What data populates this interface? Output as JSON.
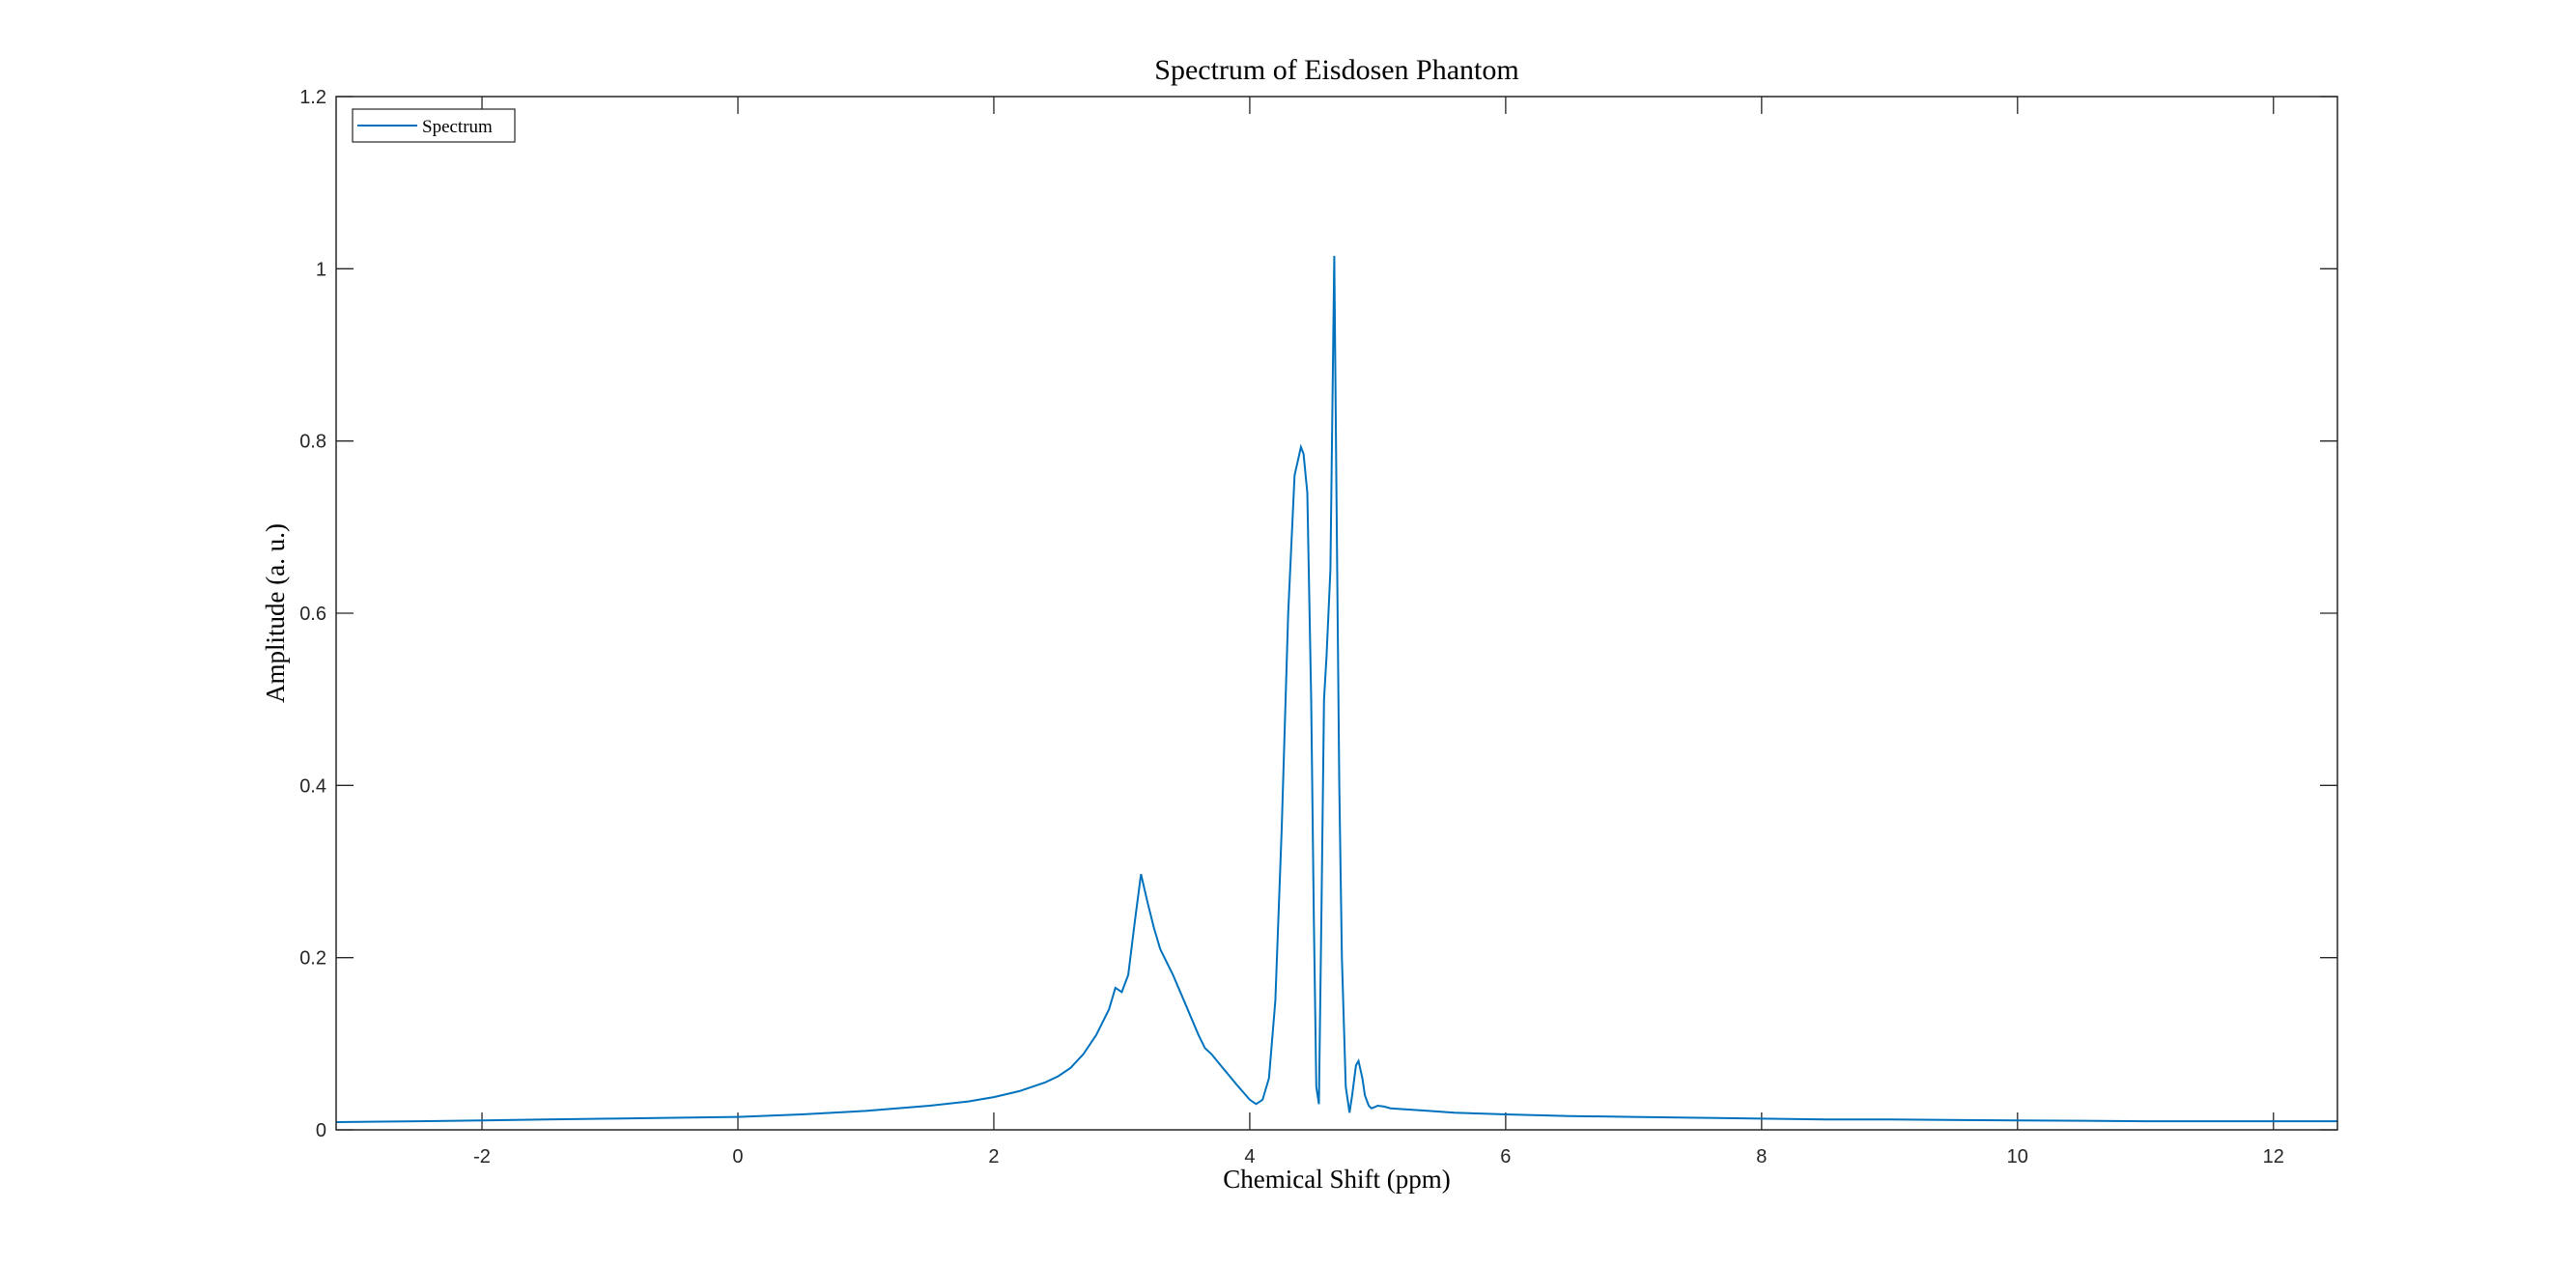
{
  "chart_data": {
    "type": "line",
    "title": "Spectrum of Eisdosen Phantom",
    "xlabel": "Chemical Shift (ppm)",
    "ylabel": "Amplitude (a. u.)",
    "xlim": [
      -3.14,
      12.5
    ],
    "ylim": [
      0,
      1.2
    ],
    "xticks": [
      -2,
      0,
      2,
      4,
      6,
      8,
      10,
      12
    ],
    "xtick_labels": [
      "-2",
      "0",
      "2",
      "4",
      "6",
      "8",
      "10",
      "12"
    ],
    "yticks": [
      0,
      0.2,
      0.4,
      0.6,
      0.8,
      1.0,
      1.2
    ],
    "ytick_labels": [
      "0",
      "0.2",
      "0.4",
      "0.6",
      "0.8",
      "1",
      "1.2"
    ],
    "grid": false,
    "legend_position": "top-left",
    "series": [
      {
        "name": "Spectrum",
        "color": "#0072bd",
        "x": [
          -3.14,
          -2.5,
          -2.0,
          -1.5,
          -1.0,
          -0.5,
          0.0,
          0.5,
          1.0,
          1.5,
          1.8,
          2.0,
          2.2,
          2.4,
          2.5,
          2.6,
          2.7,
          2.8,
          2.9,
          2.95,
          3.0,
          3.05,
          3.1,
          3.15,
          3.2,
          3.25,
          3.3,
          3.4,
          3.5,
          3.6,
          3.65,
          3.7,
          3.8,
          3.9,
          4.0,
          4.05,
          4.1,
          4.15,
          4.2,
          4.25,
          4.3,
          4.35,
          4.4,
          4.42,
          4.45,
          4.48,
          4.5,
          4.52,
          4.54,
          4.56,
          4.58,
          4.6,
          4.63,
          4.66,
          4.68,
          4.7,
          4.72,
          4.75,
          4.78,
          4.8,
          4.83,
          4.85,
          4.88,
          4.9,
          4.93,
          4.95,
          4.97,
          5.0,
          5.05,
          5.1,
          5.2,
          5.3,
          5.4,
          5.6,
          5.8,
          6.0,
          6.5,
          7.0,
          7.5,
          8.0,
          8.5,
          9.0,
          10.0,
          11.0,
          12.0,
          12.5
        ],
        "y": [
          0.009,
          0.01,
          0.011,
          0.012,
          0.013,
          0.014,
          0.015,
          0.018,
          0.022,
          0.028,
          0.033,
          0.038,
          0.045,
          0.055,
          0.062,
          0.072,
          0.088,
          0.11,
          0.14,
          0.165,
          0.16,
          0.18,
          0.24,
          0.297,
          0.265,
          0.235,
          0.21,
          0.18,
          0.145,
          0.11,
          0.095,
          0.088,
          0.07,
          0.052,
          0.035,
          0.03,
          0.035,
          0.06,
          0.15,
          0.35,
          0.6,
          0.76,
          0.793,
          0.785,
          0.74,
          0.5,
          0.25,
          0.05,
          0.03,
          0.25,
          0.5,
          0.55,
          0.65,
          1.015,
          0.7,
          0.4,
          0.2,
          0.05,
          0.02,
          0.04,
          0.075,
          0.08,
          0.06,
          0.04,
          0.028,
          0.025,
          0.026,
          0.028,
          0.027,
          0.025,
          0.024,
          0.023,
          0.022,
          0.02,
          0.019,
          0.018,
          0.016,
          0.015,
          0.014,
          0.013,
          0.012,
          0.012,
          0.011,
          0.01,
          0.01,
          0.01
        ]
      }
    ]
  }
}
